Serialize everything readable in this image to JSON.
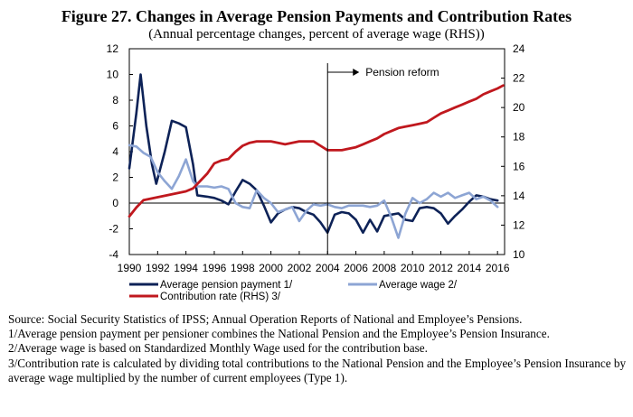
{
  "figure": {
    "title": "Figure 27. Changes in Average Pension Payments and Contribution Rates",
    "subtitle": "(Annual percentage changes, percent of average wage (RHS))"
  },
  "notes": [
    "Source: Social Security Statistics of IPSS; Annual Operation Reports of National and Employee’s Pensions.",
    "1/Average pension payment per pensioner combines the National Pension and the Employee’s Pension Insurance.",
    "2/Average wage is based on Standardized Monthly Wage used for the contribution base.",
    "3/Contribution rate is calculated by dividing total contributions to the National Pension and the Employee’s Pension Insurance by average wage multiplied by the number of current employees (Type 1)."
  ],
  "chart_data": {
    "type": "line",
    "title": "Figure 27. Changes in Average Pension Payments and Contribution Rates",
    "subtitle": "(Annual percentage changes, percent of average wage (RHS))",
    "xlim": [
      1990,
      2016.5
    ],
    "ylim_left": [
      -4,
      12
    ],
    "ylim_right": [
      10,
      24
    ],
    "x_tick_labels": [
      "1990",
      "1992",
      "1994",
      "1996",
      "1998",
      "2000",
      "2002",
      "2004",
      "2006",
      "2008",
      "2010",
      "2012",
      "2014",
      "2016"
    ],
    "y_left_tick_labels": [
      "-4",
      "-2",
      "0",
      "2",
      "4",
      "6",
      "8",
      "10",
      "12"
    ],
    "y_right_tick_labels": [
      "10",
      "12",
      "14",
      "16",
      "18",
      "20",
      "22",
      "24"
    ],
    "grid": false,
    "legend_position": "bottom-left",
    "annotation": {
      "label": "Pension reform",
      "x": 2004
    },
    "series": [
      {
        "name": "Average pension payment 1/",
        "axis": "left",
        "color": "#0d2257",
        "points": [
          [
            1990.0,
            2.7
          ],
          [
            1990.5,
            7.0
          ],
          [
            1990.8,
            10.0
          ],
          [
            1991.2,
            6.0
          ],
          [
            1991.6,
            3.0
          ],
          [
            1991.9,
            1.5
          ],
          [
            1992.5,
            4.0
          ],
          [
            1993.0,
            6.4
          ],
          [
            1993.5,
            6.2
          ],
          [
            1994.0,
            5.9
          ],
          [
            1994.5,
            3.0
          ],
          [
            1994.8,
            0.6
          ],
          [
            1995.5,
            0.5
          ],
          [
            1996.0,
            0.4
          ],
          [
            1996.5,
            0.2
          ],
          [
            1997.0,
            -0.1
          ],
          [
            1997.5,
            0.9
          ],
          [
            1998.0,
            1.8
          ],
          [
            1998.5,
            1.5
          ],
          [
            1999.0,
            1.0
          ],
          [
            1999.5,
            -0.2
          ],
          [
            2000.0,
            -1.5
          ],
          [
            2000.5,
            -0.8
          ],
          [
            2001.0,
            -0.5
          ],
          [
            2001.5,
            -0.3
          ],
          [
            2002.0,
            -0.4
          ],
          [
            2002.5,
            -0.7
          ],
          [
            2003.0,
            -0.9
          ],
          [
            2003.5,
            -1.5
          ],
          [
            2004.0,
            -2.3
          ],
          [
            2004.5,
            -0.9
          ],
          [
            2005.0,
            -0.7
          ],
          [
            2005.5,
            -0.8
          ],
          [
            2006.0,
            -1.3
          ],
          [
            2006.5,
            -2.3
          ],
          [
            2007.0,
            -1.3
          ],
          [
            2007.5,
            -2.2
          ],
          [
            2008.0,
            -1.0
          ],
          [
            2008.5,
            -0.9
          ],
          [
            2009.0,
            -0.8
          ],
          [
            2009.5,
            -1.3
          ],
          [
            2010.0,
            -1.4
          ],
          [
            2010.5,
            -0.4
          ],
          [
            2011.0,
            -0.3
          ],
          [
            2011.5,
            -0.4
          ],
          [
            2012.0,
            -0.8
          ],
          [
            2012.5,
            -1.6
          ],
          [
            2013.0,
            -1.0
          ],
          [
            2013.5,
            -0.5
          ],
          [
            2014.0,
            0.1
          ],
          [
            2014.5,
            0.6
          ],
          [
            2015.0,
            0.5
          ],
          [
            2015.5,
            0.3
          ],
          [
            2016.0,
            0.2
          ]
        ]
      },
      {
        "name": "Average wage 2/",
        "axis": "left",
        "color": "#8da5d4",
        "points": [
          [
            1990.0,
            4.5
          ],
          [
            1990.5,
            4.4
          ],
          [
            1991.0,
            3.9
          ],
          [
            1991.5,
            3.6
          ],
          [
            1992.0,
            2.4
          ],
          [
            1992.5,
            1.7
          ],
          [
            1993.0,
            1.1
          ],
          [
            1993.5,
            2.1
          ],
          [
            1994.0,
            3.4
          ],
          [
            1994.5,
            1.7
          ],
          [
            1994.8,
            1.3
          ],
          [
            1995.5,
            1.3
          ],
          [
            1996.0,
            1.2
          ],
          [
            1996.5,
            1.3
          ],
          [
            1997.0,
            1.1
          ],
          [
            1997.5,
            0.0
          ],
          [
            1998.0,
            -0.3
          ],
          [
            1998.5,
            -0.4
          ],
          [
            1999.0,
            1.0
          ],
          [
            1999.5,
            0.4
          ],
          [
            2000.0,
            0.0
          ],
          [
            2000.5,
            -0.7
          ],
          [
            2001.0,
            -0.5
          ],
          [
            2001.5,
            -0.3
          ],
          [
            2002.0,
            -1.4
          ],
          [
            2002.5,
            -0.6
          ],
          [
            2003.0,
            -0.1
          ],
          [
            2003.5,
            -0.2
          ],
          [
            2004.0,
            -0.1
          ],
          [
            2004.5,
            -0.3
          ],
          [
            2005.0,
            -0.4
          ],
          [
            2005.5,
            -0.2
          ],
          [
            2006.0,
            -0.2
          ],
          [
            2006.5,
            -0.2
          ],
          [
            2007.0,
            -0.3
          ],
          [
            2007.5,
            -0.2
          ],
          [
            2008.0,
            0.2
          ],
          [
            2008.5,
            -1.1
          ],
          [
            2009.0,
            -2.7
          ],
          [
            2009.5,
            -0.8
          ],
          [
            2010.0,
            0.4
          ],
          [
            2010.5,
            0.0
          ],
          [
            2011.0,
            0.3
          ],
          [
            2011.5,
            0.8
          ],
          [
            2012.0,
            0.5
          ],
          [
            2012.5,
            0.8
          ],
          [
            2013.0,
            0.4
          ],
          [
            2013.5,
            0.6
          ],
          [
            2014.0,
            0.8
          ],
          [
            2014.5,
            0.3
          ],
          [
            2015.0,
            0.5
          ],
          [
            2015.5,
            0.2
          ],
          [
            2016.0,
            -0.3
          ]
        ]
      },
      {
        "name": "Contribution rate (RHS) 3/",
        "axis": "right",
        "color": "#c0181e",
        "points": [
          [
            1990.0,
            12.6
          ],
          [
            1990.5,
            13.2
          ],
          [
            1991.0,
            13.7
          ],
          [
            1991.5,
            13.8
          ],
          [
            1992.0,
            13.9
          ],
          [
            1992.5,
            14.0
          ],
          [
            1993.0,
            14.1
          ],
          [
            1993.5,
            14.2
          ],
          [
            1994.0,
            14.3
          ],
          [
            1994.5,
            14.5
          ],
          [
            1995.0,
            15.0
          ],
          [
            1995.5,
            15.5
          ],
          [
            1996.0,
            16.2
          ],
          [
            1996.5,
            16.4
          ],
          [
            1997.0,
            16.5
          ],
          [
            1997.5,
            17.0
          ],
          [
            1998.0,
            17.4
          ],
          [
            1998.5,
            17.6
          ],
          [
            1999.0,
            17.7
          ],
          [
            1999.5,
            17.7
          ],
          [
            2000.0,
            17.7
          ],
          [
            2000.5,
            17.6
          ],
          [
            2001.0,
            17.5
          ],
          [
            2001.5,
            17.6
          ],
          [
            2002.0,
            17.7
          ],
          [
            2002.5,
            17.7
          ],
          [
            2003.0,
            17.7
          ],
          [
            2003.5,
            17.4
          ],
          [
            2004.0,
            17.1
          ],
          [
            2004.5,
            17.1
          ],
          [
            2005.0,
            17.1
          ],
          [
            2005.5,
            17.2
          ],
          [
            2006.0,
            17.3
          ],
          [
            2006.5,
            17.5
          ],
          [
            2007.0,
            17.7
          ],
          [
            2007.5,
            17.9
          ],
          [
            2008.0,
            18.2
          ],
          [
            2008.5,
            18.4
          ],
          [
            2009.0,
            18.6
          ],
          [
            2009.5,
            18.7
          ],
          [
            2010.0,
            18.8
          ],
          [
            2010.5,
            18.9
          ],
          [
            2011.0,
            19.0
          ],
          [
            2011.5,
            19.3
          ],
          [
            2012.0,
            19.6
          ],
          [
            2012.5,
            19.8
          ],
          [
            2013.0,
            20.0
          ],
          [
            2013.5,
            20.2
          ],
          [
            2014.0,
            20.4
          ],
          [
            2014.5,
            20.6
          ],
          [
            2015.0,
            20.9
          ],
          [
            2015.5,
            21.1
          ],
          [
            2016.0,
            21.3
          ],
          [
            2016.4,
            21.5
          ]
        ]
      }
    ]
  }
}
